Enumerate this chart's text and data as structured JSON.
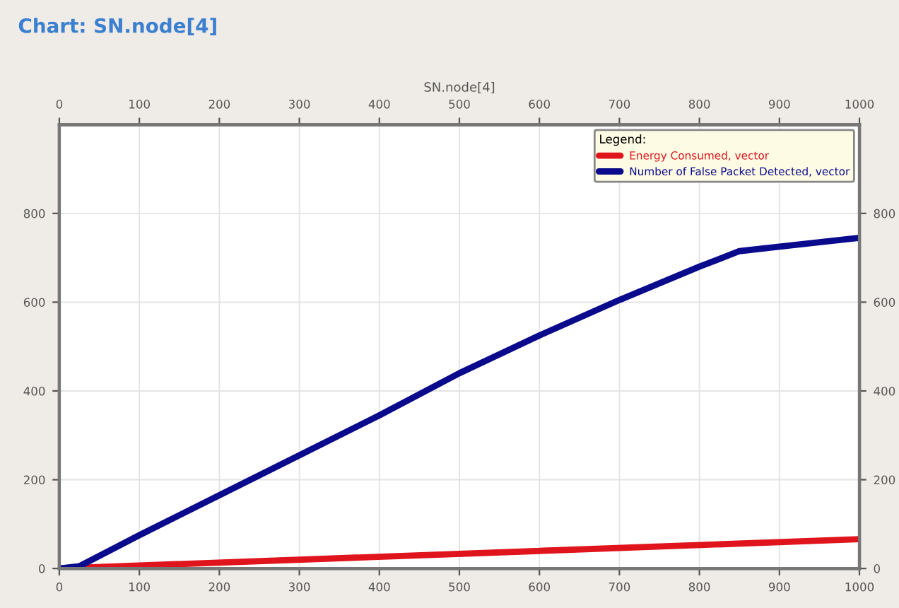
{
  "chart_data": {
    "type": "line",
    "title": "Chart: SN.node[4]",
    "x2label": "SN.node[4]",
    "legend_title": "Legend:",
    "xlim": [
      0,
      1000
    ],
    "xticks": [
      0,
      100,
      200,
      300,
      400,
      500,
      600,
      700,
      800,
      900,
      1000
    ],
    "x2lim": [
      0,
      1000
    ],
    "x2ticks": [
      0,
      100,
      200,
      300,
      400,
      500,
      600,
      700,
      800,
      900,
      1000
    ],
    "ylim": [
      0,
      1000
    ],
    "yticks": [
      0,
      200,
      400,
      600,
      800
    ],
    "y2lim": [
      0,
      1000
    ],
    "y2ticks": [
      0,
      200,
      400,
      600,
      800
    ],
    "grid": true,
    "legend": "top right",
    "marker": "none",
    "line_style": "solid",
    "series": [
      {
        "name": "Energy Consumed, vector",
        "color": "#e0141c",
        "x": [
          0,
          1000
        ],
        "values": [
          0,
          66
        ]
      },
      {
        "name": "Number of False Packet Detected, vector",
        "color": "#0a0a8c",
        "x": [
          0,
          25,
          100,
          200,
          300,
          400,
          500,
          600,
          700,
          800,
          850,
          900,
          1000
        ],
        "values": [
          0,
          5,
          75,
          165,
          255,
          345,
          440,
          525,
          605,
          680,
          715,
          725,
          745
        ]
      }
    ]
  }
}
